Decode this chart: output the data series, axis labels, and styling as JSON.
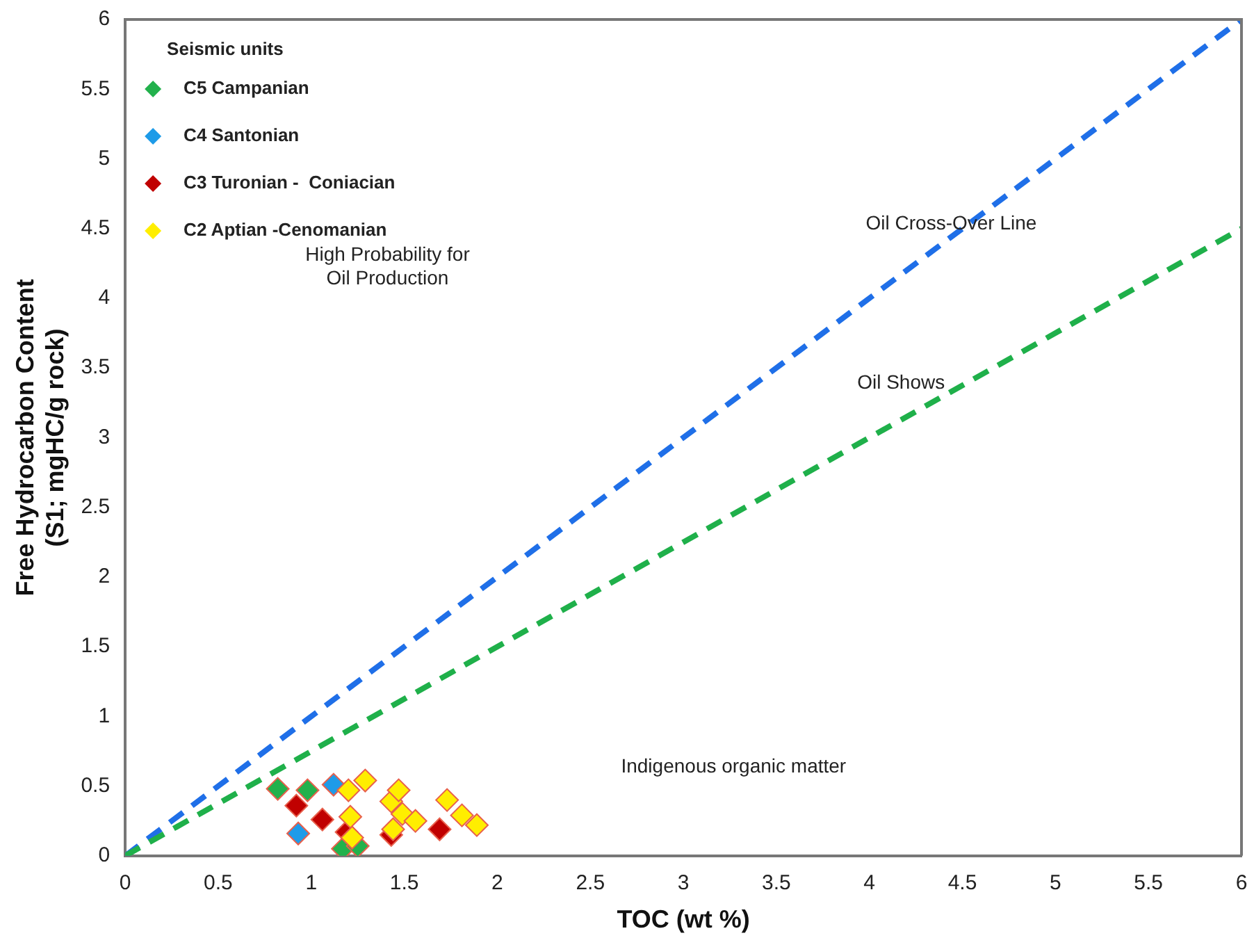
{
  "chart_data": {
    "type": "scatter",
    "xlabel": "TOC (wt %)",
    "ylabel": "Free Hydrocarbon Content\n(S1; mgHC/g rock)",
    "legend_title": "Seismic units",
    "legend": "top left",
    "grid": false,
    "marker": "diamond",
    "xlim": [
      0,
      6
    ],
    "ylim": [
      0,
      6
    ],
    "xticks": [
      0,
      0.5,
      1,
      1.5,
      2,
      2.5,
      3,
      3.5,
      4,
      4.5,
      5,
      5.5,
      6
    ],
    "yticks": [
      0,
      0.5,
      1,
      1.5,
      2,
      2.5,
      3,
      3.5,
      4,
      4.5,
      5,
      5.5,
      6
    ],
    "series": [
      {
        "type": "line",
        "color": "#1f6fe8",
        "line_style": "dashed",
        "marker": "none",
        "x": [
          0,
          6
        ],
        "values": [
          0,
          6
        ]
      },
      {
        "type": "line",
        "color": "#1fb04a",
        "line_style": "dashed",
        "marker": "none",
        "x": [
          0,
          6
        ],
        "values": [
          0,
          4.5
        ]
      },
      {
        "name": "C5 Campanian",
        "color": "#22b14c",
        "x": [
          0.82,
          0.98,
          1.17,
          1.25
        ],
        "values": [
          0.48,
          0.47,
          0.05,
          0.07
        ]
      },
      {
        "name": "C4 Santonian",
        "color": "#1e9be8",
        "x": [
          1.12,
          0.93
        ],
        "values": [
          0.51,
          0.16
        ]
      },
      {
        "name": "C3 Turonian -  Coniacian",
        "color": "#c00000",
        "x": [
          0.92,
          1.06,
          1.19,
          1.43,
          1.69
        ],
        "values": [
          0.36,
          0.26,
          0.17,
          0.15,
          0.19
        ]
      },
      {
        "name": "C2 Aptian -Cenomanian",
        "color": "#ffee00",
        "x": [
          1.2,
          1.29,
          1.21,
          1.22,
          1.43,
          1.47,
          1.49,
          1.56,
          1.44,
          1.73,
          1.81,
          1.89
        ],
        "values": [
          0.47,
          0.54,
          0.28,
          0.13,
          0.39,
          0.47,
          0.3,
          0.25,
          0.19,
          0.4,
          0.29,
          0.22
        ]
      }
    ],
    "annotations": [
      "Oil Cross-Over Line",
      "Oil Shows",
      "High Probability for\nOil Production",
      "Indigenous organic matter"
    ]
  }
}
